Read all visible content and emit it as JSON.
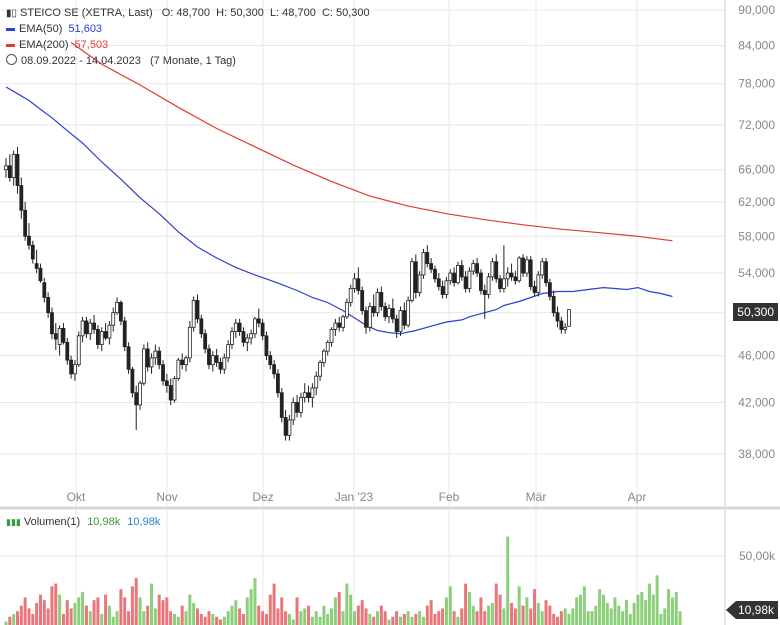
{
  "legend": {
    "instrument": "STEICO SE (XETRA, Last)",
    "ohlc": "O: 48,700  H: 50,300  L: 48,700  C: 50,300",
    "ema50_label": "EMA(50)",
    "ema50_value": "51,603",
    "ema200_label": "EMA(200)",
    "ema200_value": "57,503",
    "range": "08.09.2022 - 14.04.2023",
    "range_note": "(7 Monate, 1 Tag)",
    "volume_label": "Volumen(1)",
    "volume_value_1": "10,98k",
    "volume_value_2": "10,98k"
  },
  "badges": {
    "last_price": "50,300",
    "last_volume": "10,98k"
  },
  "colors": {
    "up": "#3a9a3a",
    "down": "#222222",
    "ema50": "#2b3fd1",
    "ema200": "#e23b2e",
    "vol_up": "#8ccf7a",
    "vol_down": "#e8777c",
    "grid": "#e8e8e8",
    "badge": "#333333"
  },
  "chart_data": [
    {
      "type": "candlestick",
      "title": "STEICO SE (XETRA, Last)",
      "y_scale": "log",
      "ylim": [
        35.5,
        92
      ],
      "y_ticks": [
        "38,000",
        "42,000",
        "46,000",
        "50,000",
        "54,000",
        "58,000",
        "62,000",
        "66,000",
        "72,000",
        "78,000",
        "84,000",
        "90,000"
      ],
      "x_ticks": [
        "Okt",
        "Nov",
        "Dez",
        "Jan '23",
        "Feb",
        "Mär",
        "Apr"
      ],
      "grid": true,
      "candles": [
        [
          66.0,
          67.5,
          65.0,
          66.5
        ],
        [
          66.5,
          68.0,
          64.5,
          65.0
        ],
        [
          65.0,
          68.5,
          64.0,
          68.0
        ],
        [
          68.0,
          69.0,
          63.0,
          64.0
        ],
        [
          64.0,
          65.0,
          60.0,
          61.0
        ],
        [
          61.0,
          62.0,
          57.5,
          58.0
        ],
        [
          58.0,
          59.5,
          56.5,
          57.0
        ],
        [
          57.0,
          57.5,
          55.0,
          55.5
        ],
        [
          55.0,
          56.5,
          54.0,
          54.5
        ],
        [
          54.5,
          55.0,
          53.0,
          53.2
        ],
        [
          53.0,
          53.5,
          51.0,
          51.5
        ],
        [
          51.5,
          52.0,
          49.5,
          50.0
        ],
        [
          50.0,
          50.5,
          47.5,
          48.0
        ],
        [
          48.0,
          49.0,
          46.5,
          47.5
        ],
        [
          47.0,
          48.8,
          46.0,
          48.5
        ],
        [
          48.5,
          49.0,
          47.0,
          47.2
        ],
        [
          47.2,
          47.6,
          45.2,
          45.6
        ],
        [
          45.6,
          46.0,
          44.0,
          44.4
        ],
        [
          44.4,
          45.6,
          43.8,
          45.2
        ],
        [
          45.2,
          48.2,
          45.0,
          47.8
        ],
        [
          47.8,
          49.6,
          47.2,
          49.2
        ],
        [
          49.2,
          49.6,
          47.6,
          48.0
        ],
        [
          48.0,
          49.4,
          47.4,
          49.0
        ],
        [
          49.0,
          49.8,
          48.0,
          48.4
        ],
        [
          48.4,
          48.8,
          46.6,
          47.0
        ],
        [
          47.0,
          48.6,
          46.4,
          48.2
        ],
        [
          48.2,
          49.0,
          47.4,
          47.6
        ],
        [
          47.6,
          49.2,
          47.0,
          48.8
        ],
        [
          48.8,
          50.5,
          48.2,
          50.0
        ],
        [
          50.0,
          51.5,
          49.8,
          51.0
        ],
        [
          51.0,
          51.2,
          48.8,
          49.2
        ],
        [
          49.2,
          49.6,
          46.4,
          46.8
        ],
        [
          46.8,
          47.2,
          44.4,
          44.8
        ],
        [
          44.8,
          45.0,
          42.4,
          42.8
        ],
        [
          42.8,
          43.4,
          39.8,
          41.8
        ],
        [
          41.8,
          43.8,
          41.4,
          43.6
        ],
        [
          43.6,
          47.0,
          43.4,
          46.6
        ],
        [
          46.6,
          47.2,
          44.6,
          45.0
        ],
        [
          45.0,
          46.2,
          44.4,
          45.8
        ],
        [
          45.8,
          47.0,
          45.2,
          46.4
        ],
        [
          46.4,
          46.8,
          44.8,
          45.2
        ],
        [
          45.2,
          45.6,
          43.4,
          43.8
        ],
        [
          43.8,
          44.4,
          42.8,
          43.4
        ],
        [
          43.4,
          44.0,
          41.8,
          42.2
        ],
        [
          42.2,
          44.2,
          42.0,
          44.0
        ],
        [
          44.0,
          45.8,
          43.8,
          45.6
        ],
        [
          45.6,
          46.2,
          44.8,
          45.2
        ],
        [
          45.2,
          46.0,
          44.6,
          45.8
        ],
        [
          45.8,
          49.2,
          45.4,
          48.6
        ],
        [
          48.6,
          51.6,
          48.2,
          51.2
        ],
        [
          51.2,
          51.8,
          49.0,
          49.4
        ],
        [
          49.4,
          49.8,
          47.6,
          48.0
        ],
        [
          48.0,
          48.4,
          46.2,
          46.6
        ],
        [
          46.6,
          47.0,
          44.8,
          45.2
        ],
        [
          45.2,
          46.4,
          44.6,
          46.0
        ],
        [
          46.0,
          46.6,
          45.0,
          45.4
        ],
        [
          45.4,
          45.8,
          44.4,
          44.8
        ],
        [
          44.8,
          46.2,
          44.4,
          45.8
        ],
        [
          45.8,
          47.4,
          45.4,
          47.0
        ],
        [
          47.0,
          48.6,
          46.6,
          48.2
        ],
        [
          48.2,
          49.4,
          47.6,
          49.0
        ],
        [
          49.0,
          49.4,
          47.8,
          48.2
        ],
        [
          48.2,
          48.6,
          46.8,
          47.2
        ],
        [
          47.2,
          48.0,
          46.4,
          47.6
        ],
        [
          47.6,
          48.4,
          47.0,
          48.0
        ],
        [
          48.0,
          49.6,
          47.6,
          49.4
        ],
        [
          49.4,
          50.4,
          48.6,
          49.0
        ],
        [
          49.0,
          49.4,
          47.4,
          47.8
        ],
        [
          47.8,
          48.2,
          45.6,
          46.0
        ],
        [
          46.0,
          46.4,
          44.8,
          45.2
        ],
        [
          45.2,
          45.6,
          44.0,
          44.4
        ],
        [
          44.4,
          44.8,
          42.4,
          42.8
        ],
        [
          42.8,
          43.2,
          40.4,
          40.8
        ],
        [
          40.8,
          41.4,
          39.0,
          39.4
        ],
        [
          39.4,
          41.0,
          39.0,
          40.6
        ],
        [
          40.6,
          42.4,
          40.2,
          42.0
        ],
        [
          42.0,
          42.6,
          40.8,
          41.2
        ],
        [
          41.2,
          42.8,
          40.8,
          42.4
        ],
        [
          42.4,
          43.6,
          42.0,
          42.8
        ],
        [
          42.8,
          43.4,
          42.0,
          42.4
        ],
        [
          42.4,
          43.6,
          41.6,
          43.2
        ],
        [
          43.2,
          44.6,
          42.6,
          44.2
        ],
        [
          44.2,
          45.6,
          43.8,
          45.4
        ],
        [
          45.4,
          46.6,
          45.0,
          46.4
        ],
        [
          46.4,
          47.4,
          46.0,
          47.2
        ],
        [
          47.2,
          48.6,
          46.8,
          48.4
        ],
        [
          48.4,
          49.4,
          47.8,
          49.0
        ],
        [
          49.0,
          49.6,
          48.2,
          48.6
        ],
        [
          48.6,
          49.8,
          48.2,
          49.6
        ],
        [
          49.6,
          51.4,
          49.4,
          51.0
        ],
        [
          51.0,
          52.8,
          50.6,
          52.4
        ],
        [
          52.4,
          54.0,
          52.0,
          53.4
        ],
        [
          53.4,
          54.6,
          51.8,
          52.2
        ],
        [
          52.2,
          52.6,
          49.8,
          50.2
        ],
        [
          50.2,
          50.6,
          48.0,
          48.6
        ],
        [
          48.6,
          51.0,
          48.2,
          50.6
        ],
        [
          50.6,
          51.8,
          49.6,
          50.0
        ],
        [
          50.0,
          52.4,
          49.6,
          52.0
        ],
        [
          52.0,
          52.6,
          50.2,
          50.6
        ],
        [
          50.6,
          51.0,
          49.2,
          49.6
        ],
        [
          49.6,
          50.8,
          49.0,
          50.4
        ],
        [
          50.4,
          51.4,
          49.0,
          49.4
        ],
        [
          49.4,
          49.8,
          47.6,
          48.2
        ],
        [
          48.2,
          50.6,
          47.8,
          50.2
        ],
        [
          50.2,
          51.0,
          48.4,
          48.8
        ],
        [
          48.8,
          51.6,
          48.6,
          51.2
        ],
        [
          51.2,
          55.6,
          51.0,
          55.2
        ],
        [
          55.2,
          56.0,
          51.4,
          52.0
        ],
        [
          52.0,
          54.2,
          51.6,
          53.8
        ],
        [
          53.8,
          56.6,
          53.4,
          56.2
        ],
        [
          56.2,
          57.0,
          54.6,
          55.0
        ],
        [
          55.0,
          55.6,
          54.0,
          54.4
        ],
        [
          54.4,
          54.8,
          53.0,
          53.4
        ],
        [
          53.4,
          54.0,
          52.2,
          52.6
        ],
        [
          52.6,
          53.2,
          51.4,
          51.8
        ],
        [
          51.8,
          53.6,
          51.4,
          53.2
        ],
        [
          53.2,
          54.4,
          52.8,
          54.0
        ],
        [
          54.0,
          54.6,
          52.6,
          53.0
        ],
        [
          53.0,
          55.2,
          52.8,
          54.8
        ],
        [
          54.8,
          55.4,
          53.2,
          53.6
        ],
        [
          53.6,
          54.2,
          52.0,
          52.4
        ],
        [
          52.4,
          54.6,
          52.0,
          54.2
        ],
        [
          54.2,
          55.4,
          53.8,
          55.0
        ],
        [
          55.0,
          55.6,
          53.6,
          54.0
        ],
        [
          54.0,
          54.4,
          51.8,
          52.2
        ],
        [
          52.2,
          52.8,
          49.4,
          51.8
        ],
        [
          51.8,
          54.0,
          51.4,
          53.6
        ],
        [
          53.6,
          55.6,
          53.2,
          55.2
        ],
        [
          55.2,
          56.0,
          53.0,
          53.4
        ],
        [
          53.4,
          53.8,
          52.0,
          52.4
        ],
        [
          52.4,
          57.0,
          52.0,
          53.4
        ],
        [
          53.4,
          54.6,
          52.6,
          54.0
        ],
        [
          54.0,
          55.0,
          53.2,
          53.6
        ],
        [
          53.6,
          54.2,
          52.8,
          53.2
        ],
        [
          53.2,
          55.8,
          53.0,
          55.6
        ],
        [
          55.6,
          56.0,
          53.6,
          54.0
        ],
        [
          54.0,
          55.8,
          53.6,
          55.4
        ],
        [
          55.4,
          55.8,
          52.2,
          52.6
        ],
        [
          52.6,
          53.2,
          51.6,
          52.0
        ],
        [
          52.0,
          54.2,
          51.6,
          53.8
        ],
        [
          53.8,
          55.6,
          53.4,
          55.2
        ],
        [
          55.2,
          55.6,
          52.6,
          53.0
        ],
        [
          53.0,
          53.4,
          51.2,
          51.6
        ],
        [
          51.6,
          52.2,
          49.6,
          50.0
        ],
        [
          50.0,
          50.6,
          48.6,
          49.2
        ],
        [
          49.2,
          49.6,
          48.0,
          48.4
        ],
        [
          48.4,
          49.0,
          48.0,
          48.6
        ],
        [
          48.7,
          50.3,
          48.7,
          50.3
        ]
      ],
      "ema50": [
        [
          0,
          77.5
        ],
        [
          3,
          76.5
        ],
        [
          6,
          75.5
        ],
        [
          9,
          74.2
        ],
        [
          12,
          73.0
        ],
        [
          16,
          71.2
        ],
        [
          20,
          69.5
        ],
        [
          25,
          67.0
        ],
        [
          30,
          64.8
        ],
        [
          35,
          62.5
        ],
        [
          40,
          60.6
        ],
        [
          45,
          58.5
        ],
        [
          50,
          56.8
        ],
        [
          55,
          55.6
        ],
        [
          60,
          54.6
        ],
        [
          65,
          53.8
        ],
        [
          70,
          53.1
        ],
        [
          72,
          52.8
        ],
        [
          76,
          52.2
        ],
        [
          80,
          51.5
        ],
        [
          84,
          51.0
        ],
        [
          88,
          50.2
        ],
        [
          91,
          49.5
        ],
        [
          94,
          48.8
        ],
        [
          97,
          48.3
        ],
        [
          100,
          48.1
        ],
        [
          103,
          48.0
        ],
        [
          107,
          48.3
        ],
        [
          111,
          48.7
        ],
        [
          115,
          49.1
        ],
        [
          119,
          49.3
        ],
        [
          121,
          49.6
        ],
        [
          124,
          49.9
        ],
        [
          128,
          50.3
        ],
        [
          130,
          50.7
        ],
        [
          134,
          51.1
        ],
        [
          137,
          51.5
        ],
        [
          140,
          51.9
        ],
        [
          144,
          52.1
        ],
        [
          148,
          52.1
        ],
        [
          152,
          52.3
        ],
        [
          156,
          52.5
        ],
        [
          159,
          52.4
        ],
        [
          162,
          52.3
        ],
        [
          165,
          52.5
        ],
        [
          168,
          52.1
        ],
        [
          171,
          51.9
        ],
        [
          174,
          51.6
        ]
      ],
      "ema200": [
        [
          17,
          84.5
        ],
        [
          25,
          81.0
        ],
        [
          35,
          77.8
        ],
        [
          45,
          74.5
        ],
        [
          55,
          71.5
        ],
        [
          65,
          69.0
        ],
        [
          75,
          66.6
        ],
        [
          85,
          64.5
        ],
        [
          95,
          62.7
        ],
        [
          105,
          61.5
        ],
        [
          115,
          60.6
        ],
        [
          125,
          59.9
        ],
        [
          135,
          59.3
        ],
        [
          145,
          58.8
        ],
        [
          155,
          58.4
        ],
        [
          165,
          58.0
        ],
        [
          172,
          57.6
        ],
        [
          174,
          57.5
        ]
      ]
    },
    {
      "type": "bar",
      "title": "Volumen(1)",
      "ylim": [
        0,
        65
      ],
      "y_ticks": [
        "50,00k"
      ],
      "values": [
        2.5,
        6,
        8,
        10,
        14,
        20,
        12,
        8,
        16,
        22,
        18,
        12,
        28,
        30,
        22,
        8,
        18,
        12,
        16,
        20,
        24,
        14,
        10,
        18,
        20,
        8,
        22,
        14,
        6,
        10,
        26,
        20,
        10,
        28,
        34,
        20,
        10,
        14,
        30,
        12,
        22,
        18,
        20,
        10,
        8,
        6,
        14,
        10,
        22,
        16,
        12,
        8,
        6,
        10,
        8,
        6,
        4,
        6,
        10,
        14,
        18,
        12,
        8,
        20,
        26,
        34,
        14,
        10,
        8,
        22,
        30,
        12,
        20,
        10,
        8,
        4,
        20,
        10,
        12,
        14,
        6,
        10,
        6,
        14,
        8,
        12,
        20,
        24,
        10,
        30,
        22,
        10,
        14,
        18,
        12,
        8,
        6,
        10,
        14,
        10,
        4,
        6,
        10,
        6,
        8,
        10,
        6,
        8,
        10,
        6,
        14,
        18,
        8,
        10,
        12,
        20,
        28,
        10,
        6,
        12,
        30,
        24,
        14,
        10,
        20,
        10,
        14,
        16,
        30,
        22,
        12,
        64,
        16,
        12,
        28,
        14,
        20,
        12,
        26,
        16,
        10,
        18,
        14,
        8,
        6,
        10,
        12,
        8,
        12,
        20,
        22,
        28,
        10,
        10,
        14,
        26,
        22,
        16,
        12,
        20,
        14,
        10,
        18,
        8,
        16,
        22,
        24,
        18,
        30,
        22,
        36,
        8,
        12,
        26,
        20,
        24,
        10
      ]
    }
  ]
}
